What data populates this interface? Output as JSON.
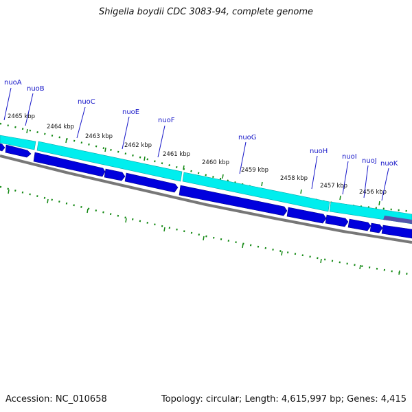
{
  "title": "Shigella boydii CDC 3083-94, complete genome",
  "footer": {
    "accession": "Accession: NC_010658",
    "summary": "Topology: circular; Length: 4,615,997 bp; Genes: 4,415"
  },
  "genes": [
    {
      "name": "nuoA"
    },
    {
      "name": "nuoB"
    },
    {
      "name": "nuoC"
    },
    {
      "name": "nuoE"
    },
    {
      "name": "nuoF"
    },
    {
      "name": "nuoG"
    },
    {
      "name": "nuoH"
    },
    {
      "name": "nuoI"
    },
    {
      "name": "nuoJ"
    },
    {
      "name": "nuoK"
    }
  ],
  "scale_labels": [
    "2465 kbp",
    "2464 kbp",
    "2463 kbp",
    "2462 kbp",
    "2461 kbp",
    "2460 kbp",
    "2459 kbp",
    "2458 kbp",
    "2457 kbp",
    "2456 kbp"
  ],
  "colors": {
    "cds_track": "#00eeee",
    "gene_arrow": "#0000dd",
    "backbone": "#777777",
    "ticks": "#118811",
    "gene_label": "#1515c8"
  }
}
